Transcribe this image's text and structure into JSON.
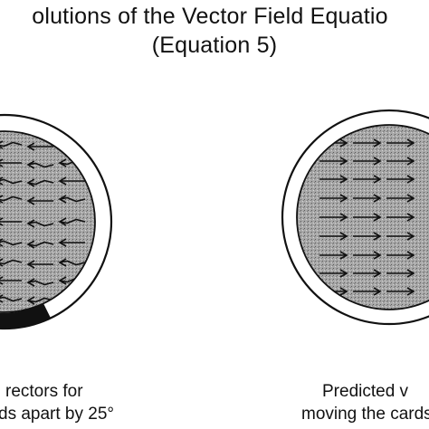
{
  "title": {
    "line1": "olutions of the Vector Field Equatio",
    "line2": "(Equation 5)"
  },
  "left_panel": {
    "caption_line1": "rectors for",
    "caption_line2": "ds apart by 25°"
  },
  "right_panel": {
    "caption_line1": "Predicted v",
    "caption_line2": "moving the cards"
  },
  "colors": {
    "ink": "#111111",
    "disc_fill": "#9c9c9c",
    "ring_fill": "#ffffff"
  }
}
